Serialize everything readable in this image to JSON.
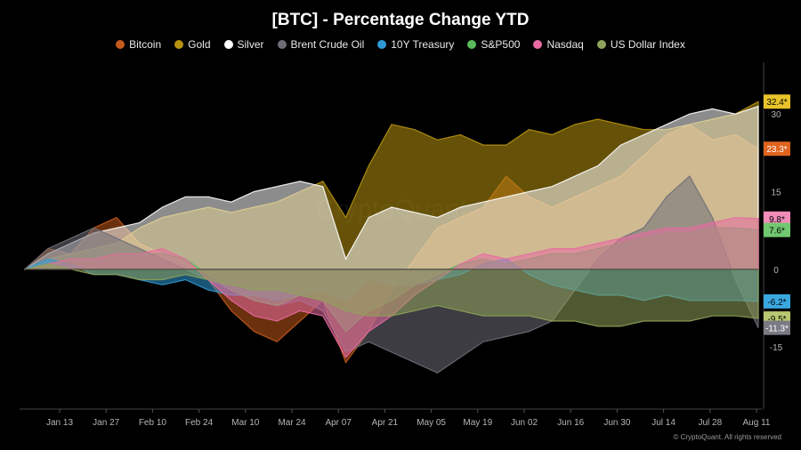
{
  "chart_data": {
    "type": "area",
    "title": "[BTC] - Percentage Change YTD",
    "xlabel": "",
    "ylabel": "",
    "ylim": [
      -27,
      40
    ],
    "y_ticks": [
      30,
      15,
      0,
      -15
    ],
    "y_tick_labels": [
      "30",
      "15",
      "0",
      "-15"
    ],
    "x_tick_labels": [
      "Jan 13",
      "Jan 27",
      "Feb 10",
      "Feb 24",
      "Mar 10",
      "Mar 24",
      "Apr 07",
      "Apr 21",
      "May 05",
      "May 19",
      "Jun 02",
      "Jun 16",
      "Jun 30",
      "Jul 14",
      "Jul 28",
      "Aug 11"
    ],
    "legend_position": "top-center",
    "grid": false,
    "x": [
      "Jan 01",
      "Jan 08",
      "Jan 13",
      "Jan 20",
      "Jan 27",
      "Feb 03",
      "Feb 10",
      "Feb 17",
      "Feb 24",
      "Mar 03",
      "Mar 10",
      "Mar 17",
      "Mar 24",
      "Mar 31",
      "Apr 07",
      "Apr 14",
      "Apr 21",
      "Apr 28",
      "May 05",
      "May 12",
      "May 19",
      "May 26",
      "Jun 02",
      "Jun 09",
      "Jun 16",
      "Jun 23",
      "Jun 30",
      "Jul 07",
      "Jul 14",
      "Jul 21",
      "Jul 28",
      "Aug 04",
      "Aug 11"
    ],
    "series": [
      {
        "name": "Bitcoin",
        "color": "#c35a1c",
        "values": [
          0,
          4,
          3,
          8,
          10,
          5,
          3,
          2,
          -2,
          -8,
          -12,
          -14,
          -10,
          -6,
          -18,
          -12,
          -4,
          2,
          8,
          10,
          12,
          18,
          14,
          12,
          14,
          16,
          18,
          22,
          26,
          28,
          25,
          26,
          23.3
        ]
      },
      {
        "name": "Gold",
        "color": "#b8930f",
        "values": [
          0,
          2,
          3,
          4,
          5,
          8,
          10,
          11,
          12,
          11,
          12,
          13,
          15,
          17,
          10,
          20,
          28,
          27,
          25,
          26,
          24,
          24,
          27,
          26,
          28,
          29,
          28,
          27,
          27,
          28,
          29,
          30,
          32.4
        ]
      },
      {
        "name": "Silver",
        "color": "#ffffff",
        "values": [
          0,
          3,
          5,
          7,
          8,
          9,
          12,
          14,
          14,
          13,
          15,
          16,
          17,
          16,
          2,
          10,
          12,
          11,
          10,
          12,
          13,
          14,
          15,
          16,
          18,
          20,
          24,
          26,
          28,
          30,
          31,
          30,
          31.5
        ]
      },
      {
        "name": "Brent Crude Oil",
        "color": "#6d6d78",
        "values": [
          0,
          4,
          6,
          8,
          6,
          4,
          2,
          0,
          -2,
          -4,
          -6,
          -7,
          -6,
          -8,
          -16,
          -14,
          -16,
          -18,
          -20,
          -17,
          -14,
          -13,
          -12,
          -10,
          -4,
          2,
          6,
          8,
          14,
          18,
          10,
          -2,
          -11.3
        ]
      },
      {
        "name": "10Y Treasury",
        "color": "#2f9ad6",
        "values": [
          0,
          2,
          1,
          -1,
          -1,
          -2,
          -3,
          -2,
          -4,
          -5,
          -5,
          -6,
          -5,
          -4,
          -6,
          -2,
          -3,
          -3,
          -2,
          -1,
          1,
          2,
          -1,
          -3,
          -4,
          -5,
          -5,
          -6,
          -5,
          -6,
          -6,
          -6,
          -6.2
        ]
      },
      {
        "name": "S&P500",
        "color": "#5cb85c",
        "values": [
          0,
          1,
          2,
          2,
          3,
          3,
          3,
          2,
          -1,
          -4,
          -6,
          -7,
          -5,
          -6,
          -12,
          -8,
          -6,
          -3,
          -1,
          1,
          2,
          1,
          2,
          3,
          3,
          4,
          5,
          6,
          7,
          7,
          8,
          8,
          7.6
        ]
      },
      {
        "name": "Nasdaq",
        "color": "#e86aa0",
        "values": [
          0,
          1,
          2,
          2,
          3,
          3,
          4,
          2,
          -2,
          -6,
          -9,
          -10,
          -8,
          -9,
          -17,
          -12,
          -9,
          -5,
          -2,
          1,
          3,
          2,
          3,
          4,
          4,
          5,
          6,
          7,
          8,
          8,
          9,
          10,
          9.8
        ]
      },
      {
        "name": "US Dollar Index",
        "color": "#8fa35a",
        "values": [
          0,
          1,
          0,
          -1,
          -1,
          -2,
          -2,
          -1,
          -2,
          -3,
          -4,
          -4,
          -5,
          -6,
          -8,
          -9,
          -9,
          -8,
          -7,
          -8,
          -9,
          -9,
          -9,
          -10,
          -10,
          -11,
          -11,
          -10,
          -10,
          -10,
          -9,
          -9,
          -9.5
        ]
      }
    ],
    "value_badges": [
      {
        "label": "32.4*",
        "color": "#e8c32a",
        "value": 32.4,
        "text_color": "#000000"
      },
      {
        "label": "23.3*",
        "color": "#e0641f",
        "value": 23.3,
        "text_color": "#ffffff"
      },
      {
        "label": "9.8*",
        "color": "#f08cb8",
        "value": 9.8,
        "text_color": "#000000"
      },
      {
        "label": "7.6*",
        "color": "#70c870",
        "value": 7.6,
        "text_color": "#000000"
      },
      {
        "label": "-6.2*",
        "color": "#3aa8e0",
        "value": -6.2,
        "text_color": "#000000"
      },
      {
        "label": "-9.5*",
        "color": "#b8c870",
        "value": -9.5,
        "text_color": "#000000"
      },
      {
        "label": "-11.3*",
        "color": "#7a7a84",
        "value": -11.3,
        "text_color": "#ffffff"
      }
    ],
    "watermark": "CryptoQuant"
  },
  "footer": {
    "copyright": "© CryptoQuant. All rights reserved"
  }
}
